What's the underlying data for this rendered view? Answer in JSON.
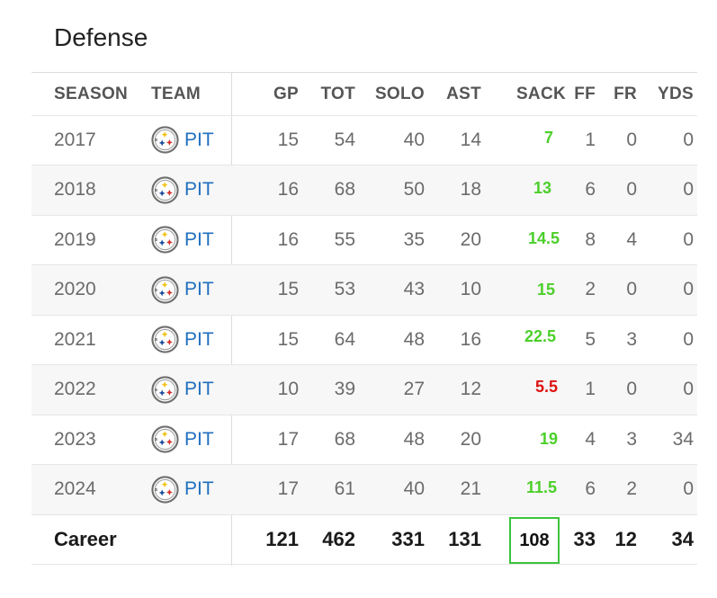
{
  "section_title": "Defense",
  "headers": {
    "season": "SEASON",
    "team": "TEAM",
    "gp": "GP",
    "tot": "TOT",
    "solo": "SOLO",
    "ast": "AST",
    "sack": "SACK",
    "ff": "FF",
    "fr": "FR",
    "yds": "YDS"
  },
  "team_logo_icon": "steelers-logo-icon",
  "colors": {
    "sack_good": "#4ccf2a",
    "sack_bad": "#dd1111",
    "career_box_border": "#3cc43c",
    "team_link": "#1f6fbf"
  },
  "rows": [
    {
      "season": "2017",
      "team": "PIT",
      "gp": "15",
      "tot": "54",
      "solo": "40",
      "ast": "14",
      "sack": "7",
      "ff": "1",
      "fr": "0",
      "yds": "0",
      "sack_color": "#4ccf2a"
    },
    {
      "season": "2018",
      "team": "PIT",
      "gp": "16",
      "tot": "68",
      "solo": "50",
      "ast": "18",
      "sack": "13",
      "ff": "6",
      "fr": "0",
      "yds": "0",
      "sack_color": "#4ccf2a"
    },
    {
      "season": "2019",
      "team": "PIT",
      "gp": "16",
      "tot": "55",
      "solo": "35",
      "ast": "20",
      "sack": "14.5",
      "ff": "8",
      "fr": "4",
      "yds": "0",
      "sack_color": "#4ccf2a"
    },
    {
      "season": "2020",
      "team": "PIT",
      "gp": "15",
      "tot": "53",
      "solo": "43",
      "ast": "10",
      "sack": "15",
      "ff": "2",
      "fr": "0",
      "yds": "0",
      "sack_color": "#4ccf2a"
    },
    {
      "season": "2021",
      "team": "PIT",
      "gp": "15",
      "tot": "64",
      "solo": "48",
      "ast": "16",
      "sack": "22.5",
      "ff": "5",
      "fr": "3",
      "yds": "0",
      "sack_color": "#4ccf2a"
    },
    {
      "season": "2022",
      "team": "PIT",
      "gp": "10",
      "tot": "39",
      "solo": "27",
      "ast": "12",
      "sack": "5.5",
      "ff": "1",
      "fr": "0",
      "yds": "0",
      "sack_color": "#dd1111"
    },
    {
      "season": "2023",
      "team": "PIT",
      "gp": "17",
      "tot": "68",
      "solo": "48",
      "ast": "20",
      "sack": "19",
      "ff": "4",
      "fr": "3",
      "yds": "34",
      "sack_color": "#4ccf2a"
    },
    {
      "season": "2024",
      "team": "PIT",
      "gp": "17",
      "tot": "61",
      "solo": "40",
      "ast": "21",
      "sack": "11.5",
      "ff": "6",
      "fr": "2",
      "yds": "0",
      "sack_color": "#4ccf2a"
    }
  ],
  "career": {
    "label": "Career",
    "gp": "121",
    "tot": "462",
    "solo": "331",
    "ast": "131",
    "sack": "108",
    "ff": "33",
    "fr": "12",
    "yds": "34"
  }
}
